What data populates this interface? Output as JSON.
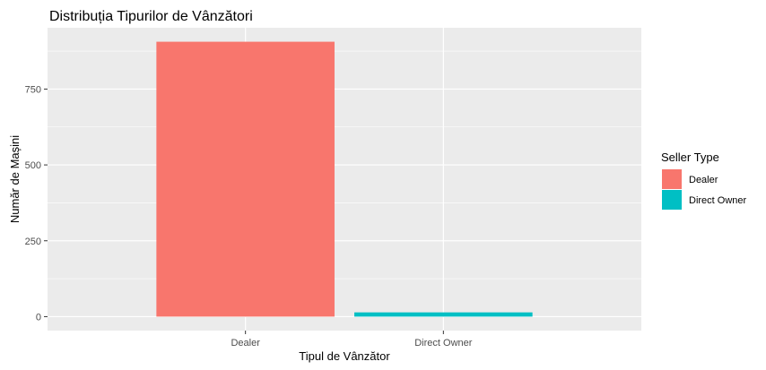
{
  "chart_data": {
    "type": "bar",
    "title": "Distribuția Tipurilor de Vânzători",
    "xlabel": "Tipul de Vânzător",
    "ylabel": "Număr de Mașini",
    "categories": [
      "Dealer",
      "Direct Owner"
    ],
    "values": [
      906,
      14
    ],
    "colors": [
      "#F8766D",
      "#00BFC4"
    ],
    "ylim": [
      -46,
      952
    ],
    "yticks": [
      0,
      250,
      500,
      750
    ],
    "ytick_labels": [
      "0",
      "250",
      "500",
      "750"
    ],
    "grid": true,
    "panel_background": "#EBEBEB",
    "legend": {
      "title": "Seller Type",
      "position": "right",
      "entries": [
        "Dealer",
        "Direct Owner"
      ]
    }
  }
}
